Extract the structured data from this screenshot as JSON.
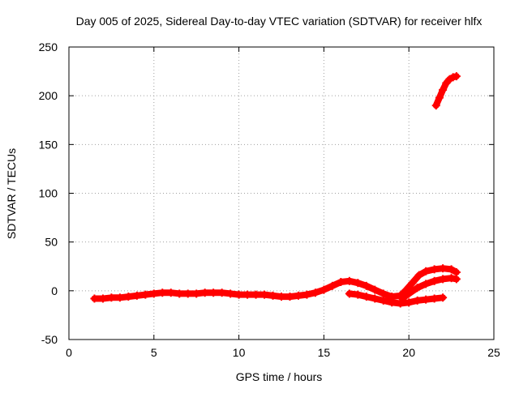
{
  "chart_data": {
    "type": "scatter",
    "title": "Day 005 of 2025, Sidereal Day-to-day VTEC variation (SDTVAR) for receiver hlfx",
    "xlabel": "GPS time / hours",
    "ylabel": "SDTVAR / TECUs",
    "xlim": [
      0,
      25
    ],
    "ylim": [
      -50,
      250
    ],
    "xticks": [
      "0",
      "5",
      "10",
      "15",
      "20",
      "25"
    ],
    "yticks": [
      "-50",
      "0",
      "50",
      "100",
      "150",
      "200",
      "250"
    ],
    "grid": true,
    "marker": "+",
    "color": "#ff0000",
    "series": [
      {
        "points": [
          [
            1.5,
            -8
          ],
          [
            2.0,
            -8
          ],
          [
            2.5,
            -7
          ],
          [
            3.0,
            -7
          ],
          [
            3.5,
            -6
          ],
          [
            4.0,
            -5
          ],
          [
            4.5,
            -4
          ],
          [
            5.0,
            -3
          ],
          [
            5.5,
            -2
          ],
          [
            6.0,
            -2
          ],
          [
            6.5,
            -3
          ],
          [
            7.0,
            -3
          ],
          [
            7.5,
            -3
          ],
          [
            8.0,
            -2
          ],
          [
            8.5,
            -2
          ],
          [
            9.0,
            -2
          ],
          [
            9.5,
            -3
          ],
          [
            10.0,
            -4
          ],
          [
            10.5,
            -4
          ],
          [
            11.0,
            -4
          ],
          [
            11.5,
            -4
          ],
          [
            12.0,
            -5
          ],
          [
            12.5,
            -6
          ],
          [
            13.0,
            -6
          ],
          [
            13.5,
            -5
          ],
          [
            14.0,
            -4
          ],
          [
            14.5,
            -2
          ],
          [
            15.0,
            1
          ],
          [
            15.5,
            5
          ],
          [
            16.0,
            9
          ],
          [
            16.5,
            10
          ],
          [
            17.0,
            8
          ],
          [
            17.5,
            5
          ],
          [
            18.0,
            1
          ],
          [
            18.5,
            -3
          ],
          [
            19.0,
            -6
          ],
          [
            19.5,
            -5
          ],
          [
            19.8,
            0
          ],
          [
            20.2,
            8
          ],
          [
            20.6,
            16
          ],
          [
            21.0,
            20
          ],
          [
            21.5,
            22
          ],
          [
            22.0,
            23
          ],
          [
            22.5,
            22
          ],
          [
            22.8,
            19
          ]
        ]
      },
      {
        "points": [
          [
            16.5,
            -3
          ],
          [
            17.0,
            -4
          ],
          [
            17.5,
            -6
          ],
          [
            18.0,
            -8
          ],
          [
            18.5,
            -10
          ],
          [
            19.0,
            -12
          ],
          [
            19.5,
            -13
          ],
          [
            20.0,
            -12
          ],
          [
            20.5,
            -10
          ],
          [
            21.0,
            -9
          ],
          [
            21.5,
            -8
          ],
          [
            22.0,
            -7
          ]
        ]
      },
      {
        "points": [
          [
            19.6,
            -8
          ],
          [
            20.0,
            -3
          ],
          [
            20.5,
            3
          ],
          [
            21.0,
            7
          ],
          [
            21.5,
            10
          ],
          [
            22.0,
            12
          ],
          [
            22.5,
            13
          ],
          [
            22.8,
            12
          ]
        ]
      },
      {
        "points": [
          [
            21.6,
            190
          ],
          [
            21.8,
            198
          ],
          [
            22.0,
            206
          ],
          [
            22.2,
            213
          ],
          [
            22.4,
            217
          ],
          [
            22.6,
            219
          ],
          [
            22.8,
            220
          ]
        ]
      }
    ]
  }
}
